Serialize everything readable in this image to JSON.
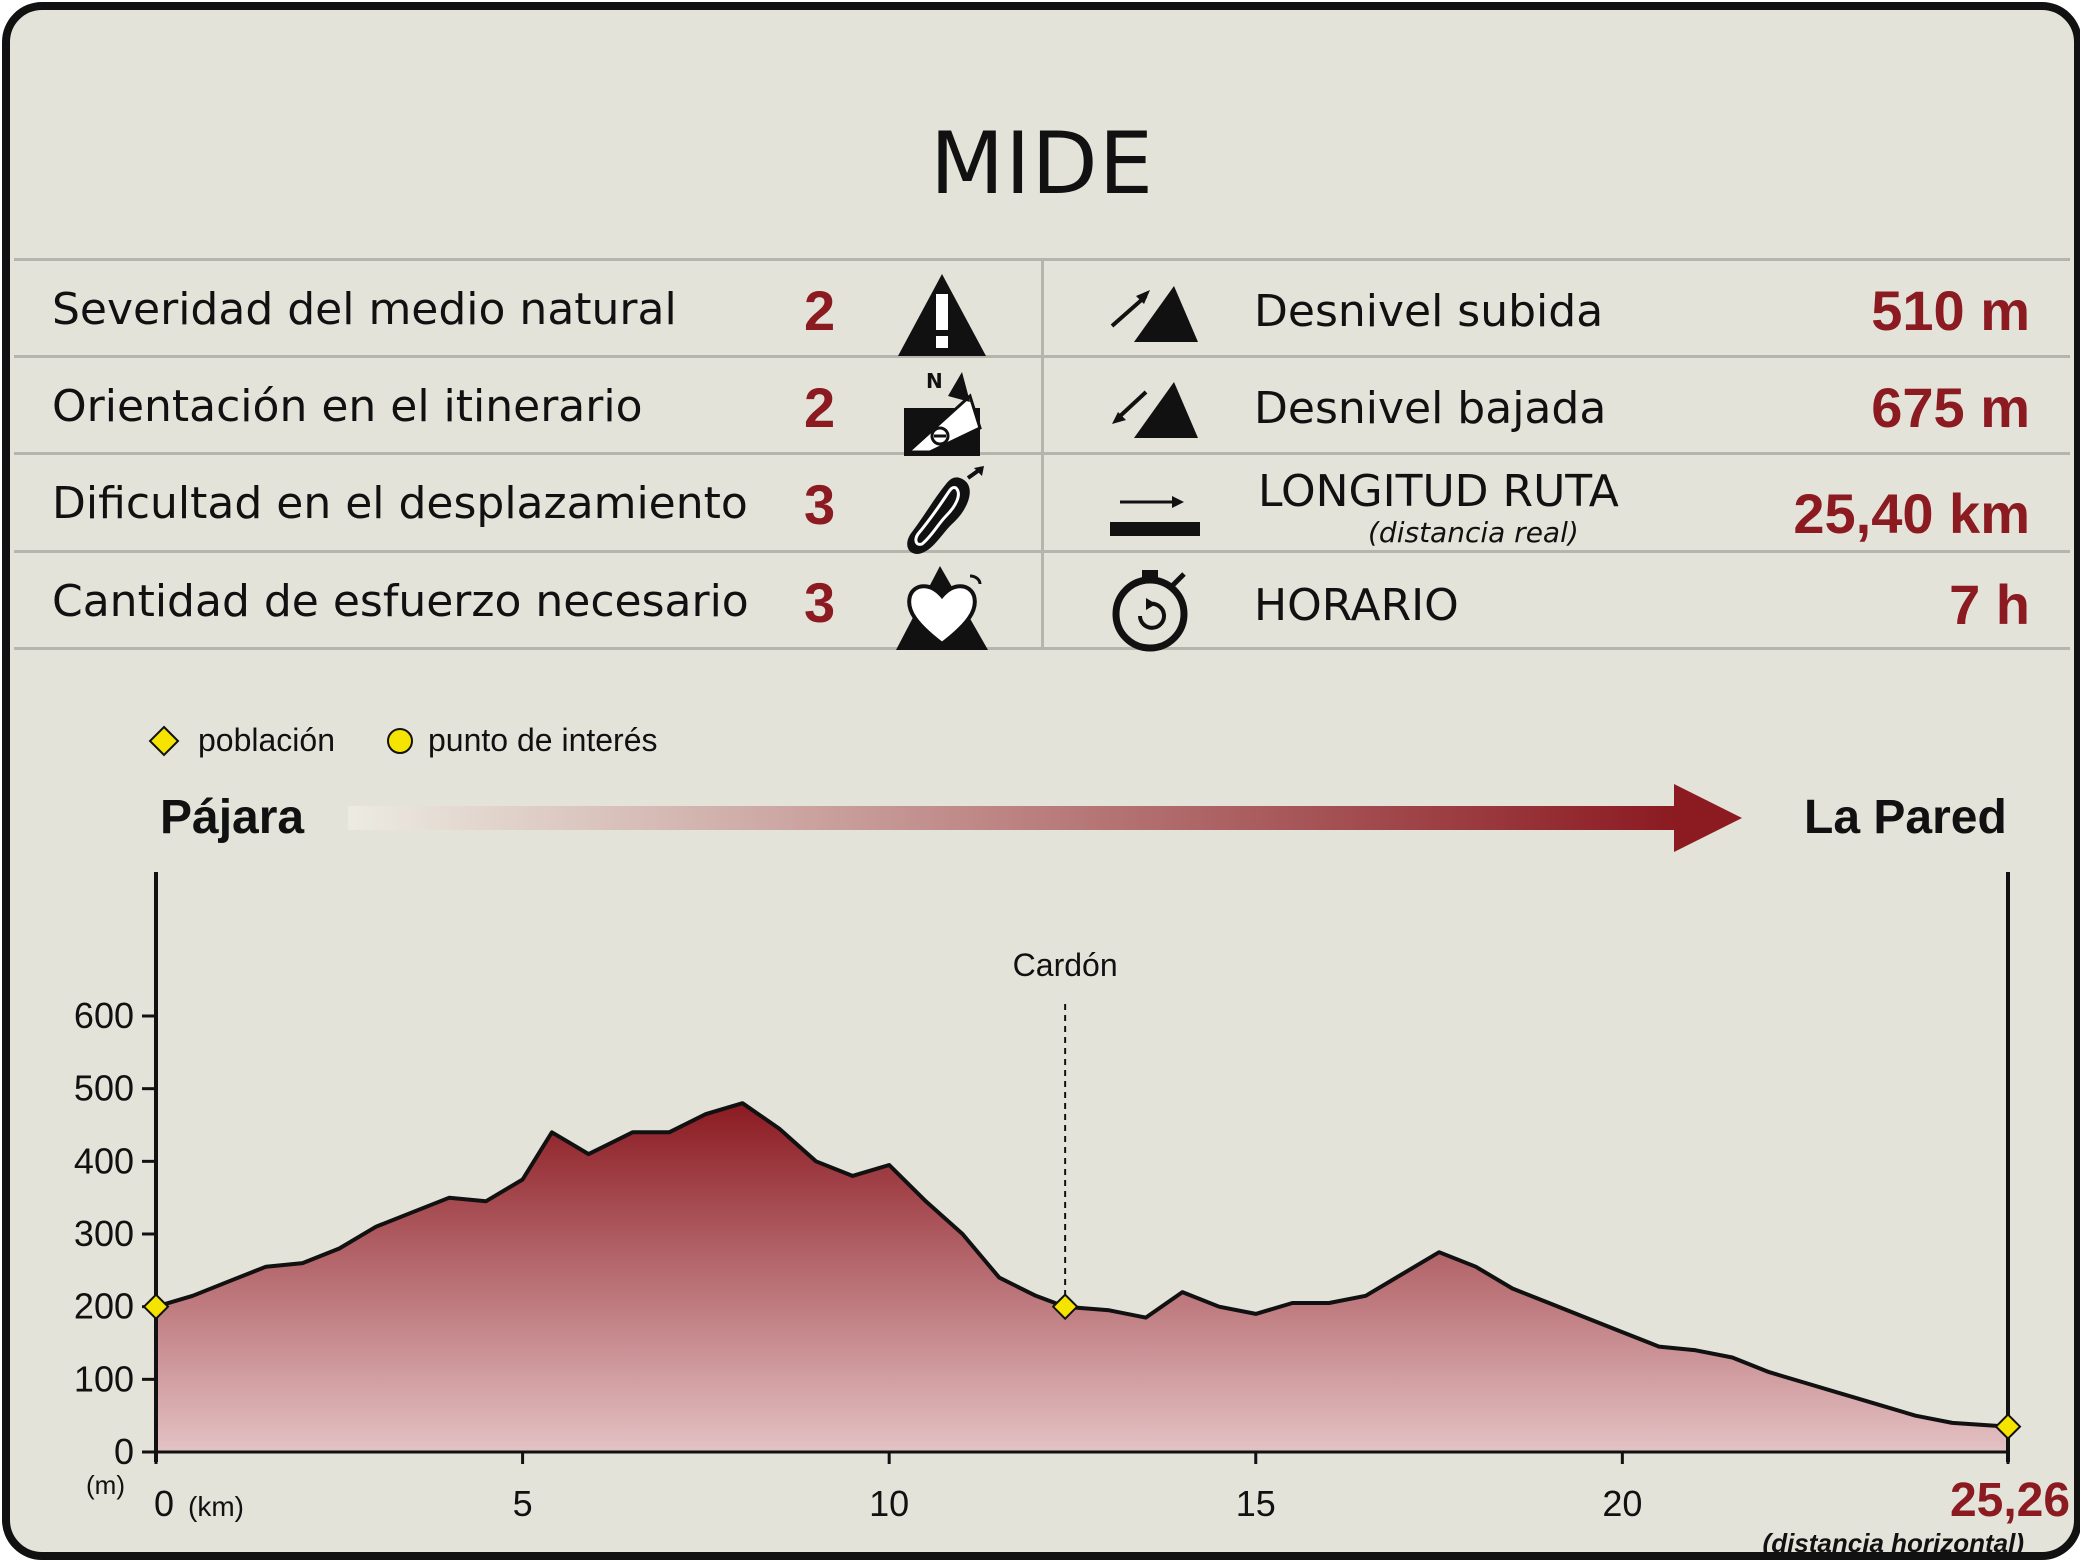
{
  "title": "MIDE",
  "mide_rows": [
    {
      "label": "Severidad del medio natural",
      "value": "2",
      "icon": "warning-icon"
    },
    {
      "label": "Orientación en el itinerario",
      "value": "2",
      "icon": "orientation-icon"
    },
    {
      "label": "Dificultad en el desplazamiento",
      "value": "3",
      "icon": "footprint-icon"
    },
    {
      "label": "Cantidad de esfuerzo necesario",
      "value": "3",
      "icon": "heart-effort-icon"
    }
  ],
  "route_rows": [
    {
      "label": "Desnivel subida",
      "value": "510 m",
      "icon": "ascent-icon"
    },
    {
      "label": "Desnivel bajada",
      "value": "675 m",
      "icon": "descent-icon"
    },
    {
      "label": "LONGITUD RUTA",
      "sublabel": "(distancia real)",
      "value": "25,40 km",
      "icon": "distance-icon"
    },
    {
      "label": "HORARIO",
      "value": "7 h",
      "icon": "stopwatch-icon"
    }
  ],
  "legend": {
    "town": "población",
    "poi": "punto de interés"
  },
  "route": {
    "start": "Pájara",
    "end": "La Pared"
  },
  "colors": {
    "accent": "#8b1a21",
    "background": "#e3e3da",
    "marker": "#f4e400"
  },
  "chart_data": {
    "type": "area",
    "xlabel": "(km)",
    "ylabel": "(m)",
    "x_unit": "(km)",
    "y_unit": "(m)",
    "xlim": [
      0,
      25.26
    ],
    "ylim": [
      0,
      600
    ],
    "x_ticks": [
      0,
      5,
      10,
      15,
      20,
      25.26
    ],
    "x_tick_labels": [
      "0",
      "5",
      "10",
      "15",
      "20",
      "25,26"
    ],
    "y_ticks": [
      0,
      100,
      200,
      300,
      400,
      500,
      600
    ],
    "x_end_note": "(distancia horizontal)",
    "grid": false,
    "series": [
      {
        "x": [
          0,
          0.5,
          1,
          1.5,
          2,
          2.5,
          3,
          3.5,
          4,
          4.5,
          5,
          5.4,
          5.9,
          6.5,
          7,
          7.5,
          8,
          8.5,
          9,
          9.5,
          10,
          10.5,
          11,
          11.5,
          12,
          12.4,
          13,
          13.5,
          14,
          14.5,
          15,
          15.5,
          16,
          16.5,
          17,
          17.5,
          18,
          18.5,
          19,
          19.5,
          20,
          20.5,
          21,
          21.5,
          22,
          22.5,
          23,
          23.5,
          24,
          24.5,
          25.26
        ],
        "y": [
          200,
          215,
          235,
          255,
          260,
          280,
          310,
          330,
          350,
          345,
          375,
          440,
          410,
          440,
          440,
          465,
          480,
          445,
          400,
          380,
          395,
          345,
          300,
          240,
          215,
          200,
          195,
          185,
          220,
          200,
          190,
          205,
          205,
          215,
          245,
          275,
          255,
          225,
          205,
          185,
          165,
          145,
          140,
          130,
          110,
          95,
          80,
          65,
          50,
          40,
          35
        ]
      }
    ],
    "markers": [
      {
        "type": "población",
        "x": 0,
        "y": 200
      },
      {
        "type": "población",
        "x": 12.4,
        "y": 200,
        "label": "Cardón"
      },
      {
        "type": "población",
        "x": 25.26,
        "y": 35
      }
    ]
  }
}
